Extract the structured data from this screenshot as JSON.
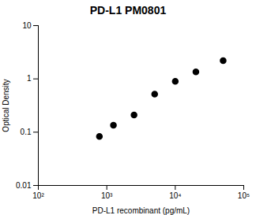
{
  "chart_data": {
    "type": "scatter",
    "title": "PD-L1 PM0801",
    "xlabel": "PD-L1 recombinant (pg/mL)",
    "ylabel": "Optical Density",
    "x": [
      780,
      1250,
      2500,
      5000,
      10000,
      20000,
      50000
    ],
    "values": [
      0.083,
      0.135,
      0.21,
      0.52,
      0.9,
      1.35,
      2.2
    ],
    "color": "black",
    "marker": "circle",
    "log": true,
    "xlim": [
      100,
      100000
    ],
    "ylim": [
      0.01,
      10
    ],
    "xticks": [
      {
        "value": 100,
        "label": "10²"
      },
      {
        "value": 1000,
        "label": "10³"
      },
      {
        "value": 10000,
        "label": "10⁴"
      },
      {
        "value": 100000,
        "label": "10⁵"
      }
    ],
    "yticks": [
      0.01,
      0.1,
      1,
      10
    ],
    "grid": false
  }
}
